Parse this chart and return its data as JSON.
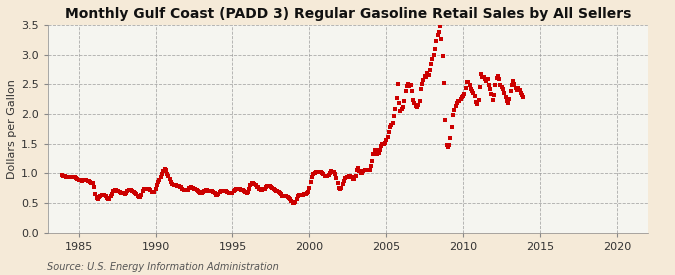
{
  "title": "Monthly Gulf Coast (PADD 3) Regular Gasoline Retail Sales by All Sellers",
  "ylabel": "Dollars per Gallon",
  "source": "Source: U.S. Energy Information Administration",
  "background_color": "#f5ead8",
  "plot_background_color": "#f5f5f0",
  "line_color": "#cc0000",
  "marker": "s",
  "marker_size": 2.2,
  "xlim": [
    1983,
    2022
  ],
  "ylim": [
    0.0,
    3.5
  ],
  "yticks": [
    0.0,
    0.5,
    1.0,
    1.5,
    2.0,
    2.5,
    3.0,
    3.5
  ],
  "xticks": [
    1985,
    1990,
    1995,
    2000,
    2005,
    2010,
    2015,
    2020
  ],
  "grid_color": "#999999",
  "grid_style": "--",
  "title_fontsize": 10,
  "label_fontsize": 8,
  "tick_fontsize": 8,
  "source_fontsize": 7,
  "data": [
    [
      1983.917,
      0.974
    ],
    [
      1984.0,
      0.96
    ],
    [
      1984.083,
      0.948
    ],
    [
      1984.167,
      0.939
    ],
    [
      1984.25,
      0.932
    ],
    [
      1984.333,
      0.935
    ],
    [
      1984.417,
      0.936
    ],
    [
      1984.5,
      0.937
    ],
    [
      1984.583,
      0.942
    ],
    [
      1984.667,
      0.94
    ],
    [
      1984.75,
      0.932
    ],
    [
      1984.833,
      0.916
    ],
    [
      1984.917,
      0.904
    ],
    [
      1985.0,
      0.891
    ],
    [
      1985.083,
      0.885
    ],
    [
      1985.167,
      0.878
    ],
    [
      1985.25,
      0.875
    ],
    [
      1985.333,
      0.885
    ],
    [
      1985.417,
      0.882
    ],
    [
      1985.5,
      0.878
    ],
    [
      1985.583,
      0.87
    ],
    [
      1985.667,
      0.862
    ],
    [
      1985.75,
      0.855
    ],
    [
      1985.833,
      0.841
    ],
    [
      1985.917,
      0.828
    ],
    [
      1986.0,
      0.76
    ],
    [
      1986.083,
      0.651
    ],
    [
      1986.167,
      0.577
    ],
    [
      1986.25,
      0.565
    ],
    [
      1986.333,
      0.594
    ],
    [
      1986.417,
      0.613
    ],
    [
      1986.5,
      0.628
    ],
    [
      1986.583,
      0.636
    ],
    [
      1986.667,
      0.638
    ],
    [
      1986.75,
      0.62
    ],
    [
      1986.833,
      0.59
    ],
    [
      1986.917,
      0.56
    ],
    [
      1987.0,
      0.57
    ],
    [
      1987.083,
      0.609
    ],
    [
      1987.167,
      0.657
    ],
    [
      1987.25,
      0.693
    ],
    [
      1987.333,
      0.712
    ],
    [
      1987.417,
      0.713
    ],
    [
      1987.5,
      0.703
    ],
    [
      1987.583,
      0.692
    ],
    [
      1987.667,
      0.685
    ],
    [
      1987.75,
      0.672
    ],
    [
      1987.833,
      0.66
    ],
    [
      1987.917,
      0.659
    ],
    [
      1988.0,
      0.655
    ],
    [
      1988.083,
      0.668
    ],
    [
      1988.167,
      0.697
    ],
    [
      1988.25,
      0.714
    ],
    [
      1988.333,
      0.717
    ],
    [
      1988.417,
      0.72
    ],
    [
      1988.5,
      0.702
    ],
    [
      1988.583,
      0.688
    ],
    [
      1988.667,
      0.665
    ],
    [
      1988.75,
      0.646
    ],
    [
      1988.833,
      0.622
    ],
    [
      1988.917,
      0.593
    ],
    [
      1989.0,
      0.6
    ],
    [
      1989.083,
      0.636
    ],
    [
      1989.167,
      0.703
    ],
    [
      1989.25,
      0.737
    ],
    [
      1989.333,
      0.739
    ],
    [
      1989.417,
      0.726
    ],
    [
      1989.5,
      0.726
    ],
    [
      1989.583,
      0.726
    ],
    [
      1989.667,
      0.717
    ],
    [
      1989.75,
      0.69
    ],
    [
      1989.833,
      0.679
    ],
    [
      1989.917,
      0.691
    ],
    [
      1990.0,
      0.733
    ],
    [
      1990.083,
      0.794
    ],
    [
      1990.167,
      0.85
    ],
    [
      1990.25,
      0.893
    ],
    [
      1990.333,
      0.937
    ],
    [
      1990.417,
      0.991
    ],
    [
      1990.5,
      1.042
    ],
    [
      1990.583,
      1.063
    ],
    [
      1990.667,
      1.053
    ],
    [
      1990.75,
      0.993
    ],
    [
      1990.833,
      0.951
    ],
    [
      1990.917,
      0.907
    ],
    [
      1991.0,
      0.857
    ],
    [
      1991.083,
      0.817
    ],
    [
      1991.167,
      0.804
    ],
    [
      1991.25,
      0.804
    ],
    [
      1991.333,
      0.796
    ],
    [
      1991.417,
      0.79
    ],
    [
      1991.5,
      0.779
    ],
    [
      1991.583,
      0.775
    ],
    [
      1991.667,
      0.764
    ],
    [
      1991.75,
      0.74
    ],
    [
      1991.833,
      0.72
    ],
    [
      1991.917,
      0.711
    ],
    [
      1992.0,
      0.712
    ],
    [
      1992.083,
      0.725
    ],
    [
      1992.167,
      0.749
    ],
    [
      1992.25,
      0.754
    ],
    [
      1992.333,
      0.76
    ],
    [
      1992.417,
      0.754
    ],
    [
      1992.5,
      0.74
    ],
    [
      1992.583,
      0.726
    ],
    [
      1992.667,
      0.718
    ],
    [
      1992.75,
      0.7
    ],
    [
      1992.833,
      0.68
    ],
    [
      1992.917,
      0.671
    ],
    [
      1993.0,
      0.669
    ],
    [
      1993.083,
      0.682
    ],
    [
      1993.167,
      0.703
    ],
    [
      1993.25,
      0.71
    ],
    [
      1993.333,
      0.712
    ],
    [
      1993.417,
      0.706
    ],
    [
      1993.5,
      0.703
    ],
    [
      1993.583,
      0.7
    ],
    [
      1993.667,
      0.693
    ],
    [
      1993.75,
      0.675
    ],
    [
      1993.833,
      0.658
    ],
    [
      1993.917,
      0.641
    ],
    [
      1994.0,
      0.64
    ],
    [
      1994.083,
      0.655
    ],
    [
      1994.167,
      0.68
    ],
    [
      1994.25,
      0.7
    ],
    [
      1994.333,
      0.706
    ],
    [
      1994.417,
      0.706
    ],
    [
      1994.5,
      0.7
    ],
    [
      1994.583,
      0.694
    ],
    [
      1994.667,
      0.686
    ],
    [
      1994.75,
      0.672
    ],
    [
      1994.833,
      0.662
    ],
    [
      1994.917,
      0.658
    ],
    [
      1995.0,
      0.669
    ],
    [
      1995.083,
      0.693
    ],
    [
      1995.167,
      0.719
    ],
    [
      1995.25,
      0.738
    ],
    [
      1995.333,
      0.741
    ],
    [
      1995.417,
      0.742
    ],
    [
      1995.5,
      0.737
    ],
    [
      1995.583,
      0.725
    ],
    [
      1995.667,
      0.713
    ],
    [
      1995.75,
      0.697
    ],
    [
      1995.833,
      0.68
    ],
    [
      1995.917,
      0.668
    ],
    [
      1996.0,
      0.69
    ],
    [
      1996.083,
      0.732
    ],
    [
      1996.167,
      0.796
    ],
    [
      1996.25,
      0.836
    ],
    [
      1996.333,
      0.84
    ],
    [
      1996.417,
      0.826
    ],
    [
      1996.5,
      0.797
    ],
    [
      1996.583,
      0.775
    ],
    [
      1996.667,
      0.759
    ],
    [
      1996.75,
      0.737
    ],
    [
      1996.833,
      0.722
    ],
    [
      1996.917,
      0.717
    ],
    [
      1997.0,
      0.728
    ],
    [
      1997.083,
      0.741
    ],
    [
      1997.167,
      0.76
    ],
    [
      1997.25,
      0.778
    ],
    [
      1997.333,
      0.78
    ],
    [
      1997.417,
      0.776
    ],
    [
      1997.5,
      0.764
    ],
    [
      1997.583,
      0.752
    ],
    [
      1997.667,
      0.736
    ],
    [
      1997.75,
      0.716
    ],
    [
      1997.833,
      0.704
    ],
    [
      1997.917,
      0.695
    ],
    [
      1998.0,
      0.686
    ],
    [
      1998.083,
      0.672
    ],
    [
      1998.167,
      0.645
    ],
    [
      1998.25,
      0.62
    ],
    [
      1998.333,
      0.61
    ],
    [
      1998.417,
      0.609
    ],
    [
      1998.5,
      0.608
    ],
    [
      1998.583,
      0.6
    ],
    [
      1998.667,
      0.589
    ],
    [
      1998.75,
      0.564
    ],
    [
      1998.833,
      0.527
    ],
    [
      1998.917,
      0.496
    ],
    [
      1999.0,
      0.497
    ],
    [
      1999.083,
      0.52
    ],
    [
      1999.167,
      0.568
    ],
    [
      1999.25,
      0.612
    ],
    [
      1999.333,
      0.632
    ],
    [
      1999.417,
      0.634
    ],
    [
      1999.5,
      0.633
    ],
    [
      1999.583,
      0.64
    ],
    [
      1999.667,
      0.643
    ],
    [
      1999.75,
      0.656
    ],
    [
      1999.833,
      0.666
    ],
    [
      1999.917,
      0.689
    ],
    [
      2000.0,
      0.748
    ],
    [
      2000.083,
      0.851
    ],
    [
      2000.167,
      0.94
    ],
    [
      2000.25,
      0.993
    ],
    [
      2000.333,
      1.01
    ],
    [
      2000.417,
      1.019
    ],
    [
      2000.5,
      1.018
    ],
    [
      2000.583,
      1.019
    ],
    [
      2000.667,
      1.025
    ],
    [
      2000.75,
      1.017
    ],
    [
      2000.833,
      0.996
    ],
    [
      2000.917,
      0.992
    ],
    [
      2001.0,
      0.955
    ],
    [
      2001.083,
      0.946
    ],
    [
      2001.167,
      0.946
    ],
    [
      2001.25,
      0.967
    ],
    [
      2001.333,
      1.01
    ],
    [
      2001.417,
      1.034
    ],
    [
      2001.5,
      1.027
    ],
    [
      2001.583,
      1.013
    ],
    [
      2001.667,
      0.993
    ],
    [
      2001.75,
      0.918
    ],
    [
      2001.833,
      0.841
    ],
    [
      2001.917,
      0.751
    ],
    [
      2002.0,
      0.735
    ],
    [
      2002.083,
      0.752
    ],
    [
      2002.167,
      0.812
    ],
    [
      2002.25,
      0.873
    ],
    [
      2002.333,
      0.921
    ],
    [
      2002.417,
      0.938
    ],
    [
      2002.5,
      0.94
    ],
    [
      2002.583,
      0.95
    ],
    [
      2002.667,
      0.959
    ],
    [
      2002.75,
      0.935
    ],
    [
      2002.833,
      0.9
    ],
    [
      2002.917,
      0.899
    ],
    [
      2003.0,
      0.961
    ],
    [
      2003.083,
      1.05
    ],
    [
      2003.167,
      1.095
    ],
    [
      2003.25,
      1.044
    ],
    [
      2003.333,
      1.008
    ],
    [
      2003.417,
      1.004
    ],
    [
      2003.5,
      1.034
    ],
    [
      2003.583,
      1.055
    ],
    [
      2003.667,
      1.056
    ],
    [
      2003.75,
      1.048
    ],
    [
      2003.833,
      1.049
    ],
    [
      2003.917,
      1.054
    ],
    [
      2004.0,
      1.116
    ],
    [
      2004.083,
      1.21
    ],
    [
      2004.167,
      1.318
    ],
    [
      2004.25,
      1.395
    ],
    [
      2004.333,
      1.393
    ],
    [
      2004.417,
      1.332
    ],
    [
      2004.5,
      1.341
    ],
    [
      2004.583,
      1.399
    ],
    [
      2004.667,
      1.453
    ],
    [
      2004.75,
      1.497
    ],
    [
      2004.833,
      1.497
    ],
    [
      2004.917,
      1.503
    ],
    [
      2005.0,
      1.556
    ],
    [
      2005.083,
      1.611
    ],
    [
      2005.167,
      1.697
    ],
    [
      2005.25,
      1.775
    ],
    [
      2005.333,
      1.813
    ],
    [
      2005.417,
      1.847
    ],
    [
      2005.5,
      1.97
    ],
    [
      2005.583,
      2.088
    ],
    [
      2005.667,
      2.271
    ],
    [
      2005.75,
      2.497
    ],
    [
      2005.833,
      2.18
    ],
    [
      2005.917,
      2.048
    ],
    [
      2006.0,
      2.075
    ],
    [
      2006.083,
      2.122
    ],
    [
      2006.167,
      2.219
    ],
    [
      2006.25,
      2.385
    ],
    [
      2006.333,
      2.47
    ],
    [
      2006.417,
      2.501
    ],
    [
      2006.5,
      2.476
    ],
    [
      2006.583,
      2.479
    ],
    [
      2006.667,
      2.38
    ],
    [
      2006.75,
      2.232
    ],
    [
      2006.833,
      2.176
    ],
    [
      2006.917,
      2.13
    ],
    [
      2007.0,
      2.122
    ],
    [
      2007.083,
      2.142
    ],
    [
      2007.167,
      2.224
    ],
    [
      2007.25,
      2.416
    ],
    [
      2007.333,
      2.51
    ],
    [
      2007.417,
      2.573
    ],
    [
      2007.5,
      2.641
    ],
    [
      2007.583,
      2.63
    ],
    [
      2007.667,
      2.683
    ],
    [
      2007.75,
      2.66
    ],
    [
      2007.833,
      2.739
    ],
    [
      2007.917,
      2.843
    ],
    [
      2008.0,
      2.926
    ],
    [
      2008.083,
      2.986
    ],
    [
      2008.167,
      3.101
    ],
    [
      2008.25,
      3.233
    ],
    [
      2008.333,
      3.323
    ],
    [
      2008.417,
      3.386
    ],
    [
      2008.5,
      3.481
    ],
    [
      2008.583,
      3.264
    ],
    [
      2008.667,
      2.984
    ],
    [
      2008.75,
      2.528
    ],
    [
      2008.833,
      1.893
    ],
    [
      2008.917,
      1.479
    ],
    [
      2009.0,
      1.441
    ],
    [
      2009.083,
      1.476
    ],
    [
      2009.167,
      1.589
    ],
    [
      2009.25,
      1.786
    ],
    [
      2009.333,
      1.978
    ],
    [
      2009.417,
      2.066
    ],
    [
      2009.5,
      2.137
    ],
    [
      2009.583,
      2.183
    ],
    [
      2009.667,
      2.222
    ],
    [
      2009.75,
      2.224
    ],
    [
      2009.833,
      2.259
    ],
    [
      2009.917,
      2.278
    ],
    [
      2010.0,
      2.296
    ],
    [
      2010.083,
      2.336
    ],
    [
      2010.167,
      2.443
    ],
    [
      2010.25,
      2.529
    ],
    [
      2010.333,
      2.538
    ],
    [
      2010.417,
      2.48
    ],
    [
      2010.5,
      2.418
    ],
    [
      2010.583,
      2.392
    ],
    [
      2010.667,
      2.356
    ],
    [
      2010.75,
      2.304
    ],
    [
      2010.833,
      2.208
    ],
    [
      2010.917,
      2.163
    ],
    [
      2011.0,
      2.232
    ],
    [
      2011.083,
      2.45
    ],
    [
      2011.167,
      2.674
    ],
    [
      2011.25,
      2.62
    ],
    [
      2011.333,
      2.63
    ],
    [
      2011.417,
      2.595
    ],
    [
      2011.5,
      2.548
    ],
    [
      2011.583,
      2.582
    ],
    [
      2011.667,
      2.493
    ],
    [
      2011.75,
      2.42
    ],
    [
      2011.833,
      2.33
    ],
    [
      2011.917,
      2.236
    ],
    [
      2012.0,
      2.312
    ],
    [
      2012.083,
      2.483
    ],
    [
      2012.167,
      2.601
    ],
    [
      2012.25,
      2.645
    ],
    [
      2012.333,
      2.59
    ],
    [
      2012.417,
      2.49
    ],
    [
      2012.5,
      2.45
    ],
    [
      2012.583,
      2.42
    ],
    [
      2012.667,
      2.36
    ],
    [
      2012.75,
      2.28
    ],
    [
      2012.833,
      2.21
    ],
    [
      2012.917,
      2.19
    ],
    [
      2013.0,
      2.245
    ],
    [
      2013.083,
      2.39
    ],
    [
      2013.167,
      2.485
    ],
    [
      2013.25,
      2.55
    ],
    [
      2013.333,
      2.51
    ],
    [
      2013.417,
      2.44
    ],
    [
      2013.5,
      2.41
    ],
    [
      2013.583,
      2.43
    ],
    [
      2013.667,
      2.4
    ],
    [
      2013.75,
      2.35
    ],
    [
      2013.833,
      2.32
    ],
    [
      2013.917,
      2.29
    ]
  ]
}
